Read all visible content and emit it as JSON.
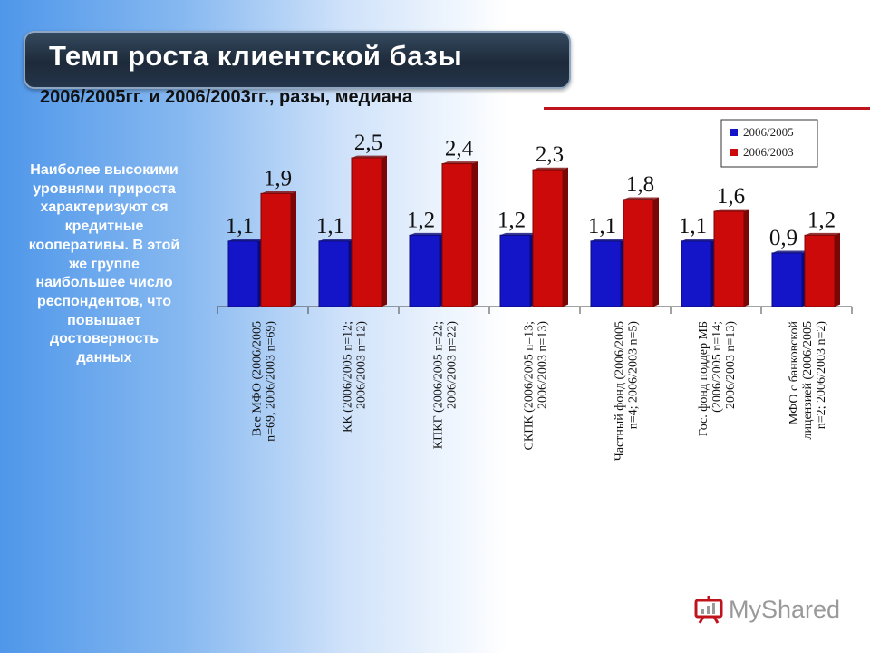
{
  "slide": {
    "title": "Темп роста клиентской базы",
    "subtitle": "2006/2005гг. и 2006/2003гг., разы, медиана",
    "side_text": "Наиболее высокими уровнями прироста характеризуют ся кредитные кооперативы. В этой же группе наибольшее число респондентов, что повышает достоверность данных",
    "logo_text": "MyShared"
  },
  "colors": {
    "series_2006_2005": "#1414c8",
    "series_2006_2003": "#cc0a0a",
    "title_bar": "#1d2a3a",
    "accent_line": "#c0141c"
  },
  "chart_data": {
    "type": "bar",
    "title": "",
    "categories": [
      [
        "Все МФО (2006/2005",
        "n=69, 2006/2003 n=69)"
      ],
      [
        "КК (2006/2005 n=12;",
        "2006/2003 n=12)"
      ],
      [
        "КПКГ (2006/2005 n=22;",
        "2006/2003 n=22)"
      ],
      [
        "СКПК (2006/2005 n=13;",
        "2006/2003 n=13)"
      ],
      [
        "Частный фонд (2006/2005",
        "n=4; 2006/2003 n=5)"
      ],
      [
        "Гос. фонд поддер МБ",
        "(2006/2005 n=14;",
        "2006/2003 n=13)"
      ],
      [
        "МФО с банковской",
        "лицензией (2006/2005",
        "n=2; 2006/2003 n=2)"
      ]
    ],
    "series": [
      {
        "name": "2006/2005",
        "values": [
          1.1,
          1.1,
          1.2,
          1.2,
          1.1,
          1.1,
          0.9
        ],
        "labels": [
          "1,1",
          "1,1",
          "1,2",
          "1,2",
          "1,1",
          "1,1",
          "0,9"
        ]
      },
      {
        "name": "2006/2003",
        "values": [
          1.9,
          2.5,
          2.4,
          2.3,
          1.8,
          1.6,
          1.2
        ],
        "labels": [
          "1,9",
          "2,5",
          "2,4",
          "2,3",
          "1,8",
          "1,6",
          "1,2"
        ]
      }
    ],
    "ylim": [
      0,
      2.5
    ],
    "legend": "top-right",
    "grid": false
  }
}
